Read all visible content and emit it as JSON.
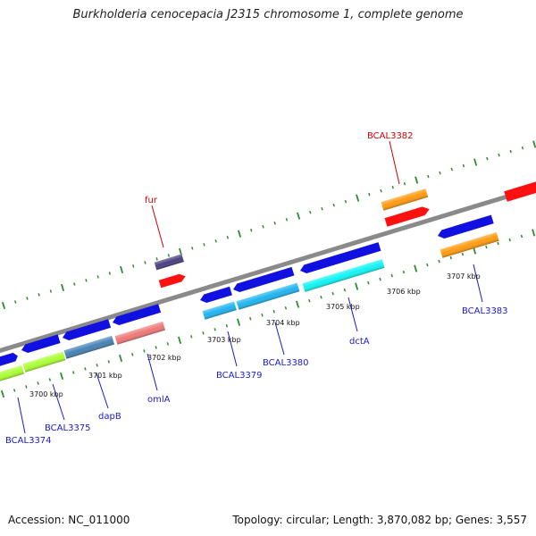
{
  "title": "Burkholderia cenocepacia J2315 chromosome 1, complete genome",
  "footer": {
    "accession": "Accession: NC_011000",
    "topology": "Topology: circular; Length: 3,870,082 bp; Genes: 3,557"
  },
  "ticks": {
    "kbp_labels": [
      "3700 kbp",
      "3701 kbp",
      "3702 kbp",
      "3703 kbp",
      "3704 kbp",
      "3705 kbp",
      "3706 kbp",
      "3707 kbp"
    ]
  },
  "genes": {
    "forward": [
      "fur",
      "BCAL3382"
    ],
    "reverse": [
      "BCAL3374",
      "BCAL3375",
      "dapB",
      "omlA",
      "BCAL3379",
      "BCAL3380",
      "dctA",
      "BCAL3383"
    ]
  },
  "colors": {
    "backbone": "#8a8a8a",
    "tick": "#2e8b2e",
    "forward_label": "#d00000",
    "reverse_label": "#1a1acc",
    "dark_blue": "#1010e0",
    "red": "#ff1010",
    "orange": "#ff9a10",
    "slate": "#4a4080",
    "lime": "#aaff33",
    "steel": "#4682b4",
    "salmon": "#f07878",
    "sky": "#1fb4f0",
    "cyan": "#10f4f4"
  }
}
